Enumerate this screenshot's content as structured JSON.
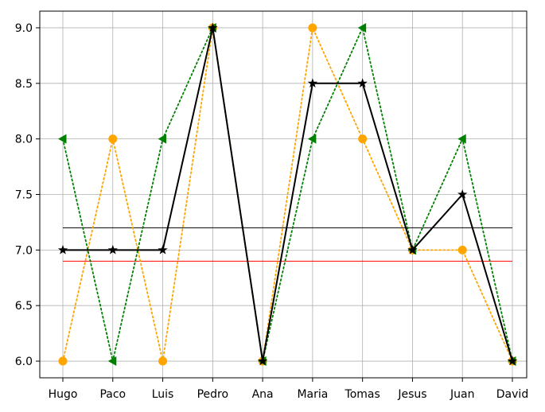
{
  "chart_data": {
    "type": "line",
    "title": "",
    "xlabel": "",
    "ylabel": "",
    "categories": [
      "Hugo",
      "Paco",
      "Luis",
      "Pedro",
      "Ana",
      "Maria",
      "Tomas",
      "Jesus",
      "Juan",
      "David"
    ],
    "yticks": [
      "6.0",
      "6.5",
      "7.0",
      "7.5",
      "8.0",
      "8.5",
      "9.0"
    ],
    "ylim": [
      5.85,
      9.15
    ],
    "grid": true,
    "legend": "none",
    "series": [
      {
        "color": "#ffa500",
        "linestyle": "dotted",
        "marker": "circle",
        "values": [
          6,
          8,
          6,
          9,
          6,
          9,
          8,
          7,
          7,
          6
        ]
      },
      {
        "color": "#008000",
        "linestyle": "dotted",
        "marker": "triangle-left",
        "values": [
          8,
          6,
          8,
          9,
          6,
          8,
          9,
          7,
          8,
          6
        ]
      },
      {
        "color": "#000000",
        "linestyle": "solid",
        "marker": "star",
        "values": [
          7,
          7,
          7,
          9,
          6,
          8.5,
          8.5,
          7,
          7.5,
          6
        ]
      }
    ],
    "reference_lines": [
      {
        "color": "#000000",
        "value": 7.2
      },
      {
        "color": "#ff0000",
        "value": 6.9
      }
    ]
  }
}
